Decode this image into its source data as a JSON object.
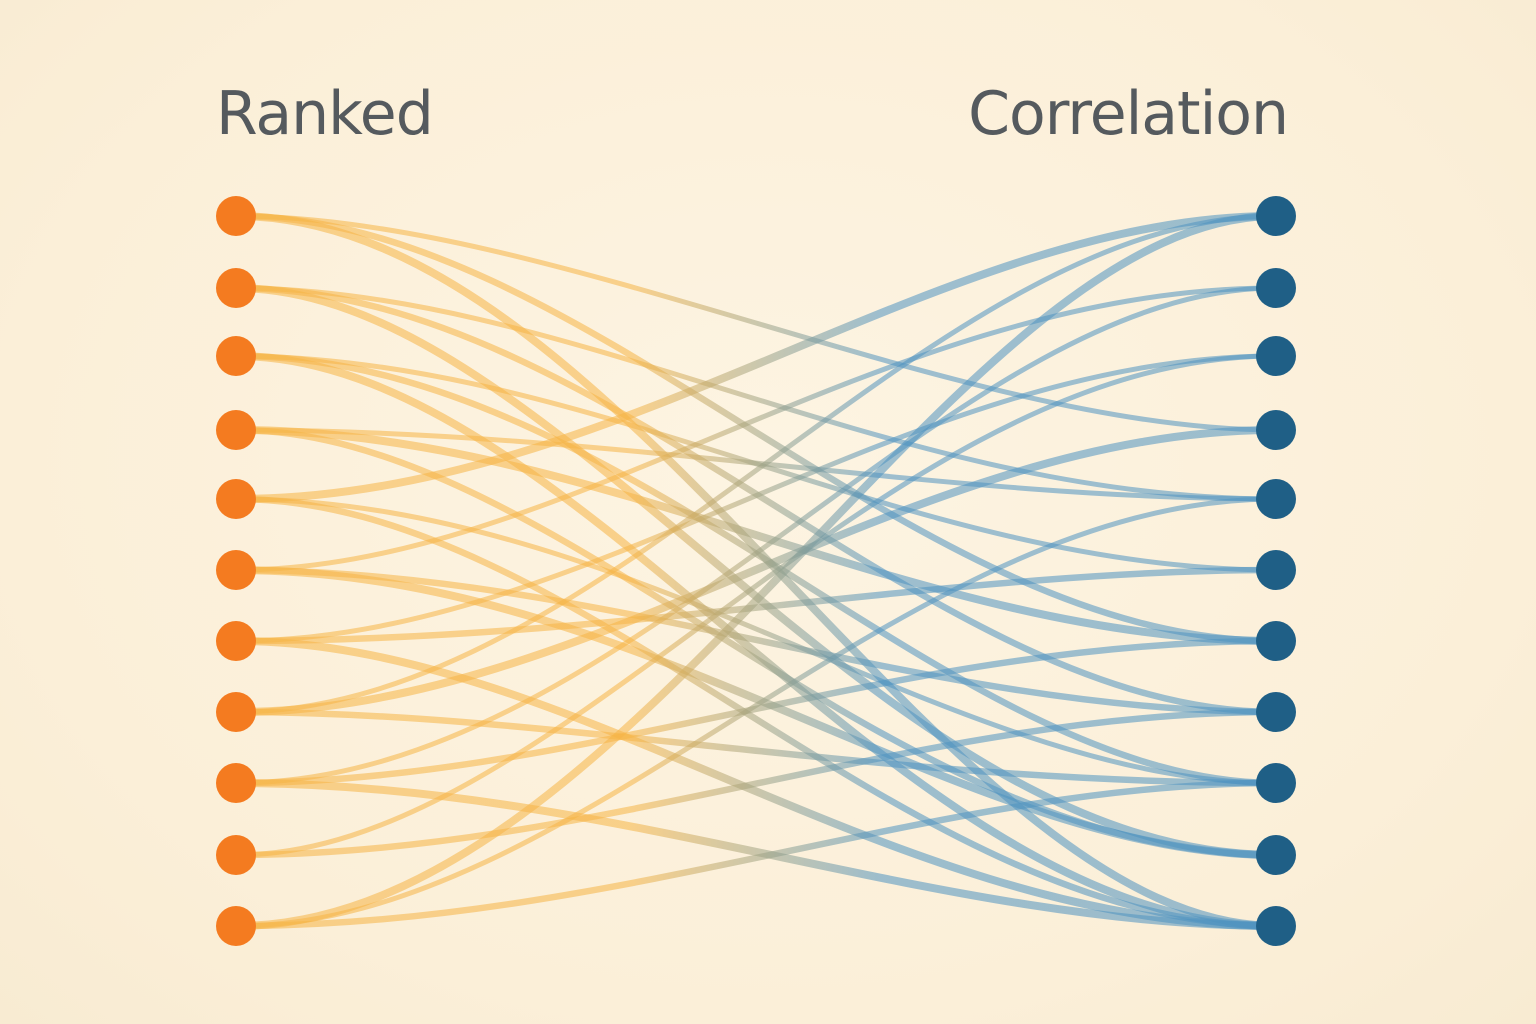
{
  "headings": {
    "left": "Ranked",
    "right": "Correlation"
  },
  "colors": {
    "background": "#fbf1dc",
    "left_node": "#f47b20",
    "right_node": "#1f5f86",
    "left_link": "#f6b445",
    "right_link": "#4f93c0",
    "heading_text": "#555a5e"
  },
  "left_node_count": 11,
  "right_node_count": 11,
  "links": [
    [
      0,
      3
    ],
    [
      0,
      6
    ],
    [
      0,
      10
    ],
    [
      1,
      4
    ],
    [
      1,
      7
    ],
    [
      1,
      9
    ],
    [
      2,
      5
    ],
    [
      2,
      8
    ],
    [
      2,
      10
    ],
    [
      3,
      4
    ],
    [
      3,
      9
    ],
    [
      3,
      6
    ],
    [
      4,
      8
    ],
    [
      4,
      10
    ],
    [
      4,
      0
    ],
    [
      5,
      1
    ],
    [
      5,
      7
    ],
    [
      5,
      9
    ],
    [
      6,
      2
    ],
    [
      6,
      5
    ],
    [
      6,
      10
    ],
    [
      7,
      0
    ],
    [
      7,
      8
    ],
    [
      7,
      3
    ],
    [
      8,
      1
    ],
    [
      8,
      6
    ],
    [
      8,
      10
    ],
    [
      9,
      2
    ],
    [
      9,
      7
    ],
    [
      10,
      0
    ],
    [
      10,
      4
    ],
    [
      10,
      8
    ]
  ]
}
